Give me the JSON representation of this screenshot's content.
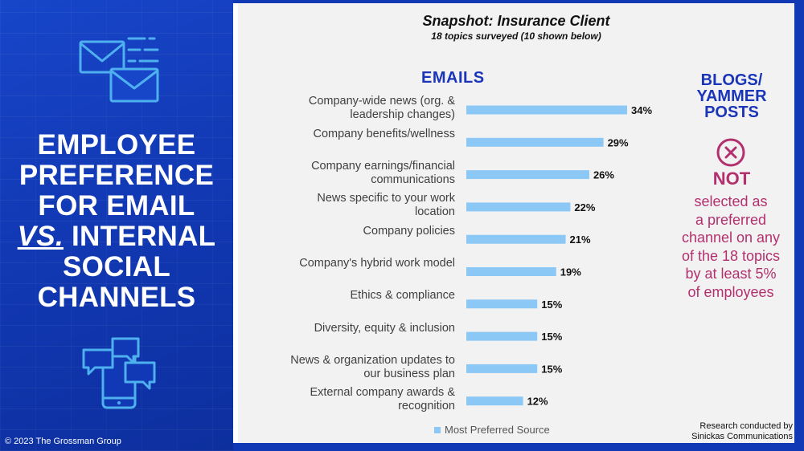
{
  "left_panel": {
    "title_line1": "EMPLOYEE",
    "title_line2": "PREFERENCE",
    "title_line3": "FOR EMAIL",
    "title_vs": "VS.",
    "title_line4_rest": " INTERNAL",
    "title_line5": "SOCIAL",
    "title_line6": "CHANNELS",
    "copyright": "© 2023 The Grossman Group",
    "top_icon": "email-envelopes-icon",
    "bottom_icon": "phone-chat-bubbles-icon"
  },
  "header": {
    "title": "Snapshot: Insurance Client",
    "subtitle": "18 topics surveyed (10 shown below)"
  },
  "emails_heading": "EMAILS",
  "chart_data": {
    "type": "bar",
    "orientation": "horizontal",
    "categories": [
      "Company-wide news (org. & leadership changes)",
      "Company benefits/wellness",
      "Company earnings/financial communications",
      "News specific to your work location",
      "Company policies",
      "Company's hybrid work model",
      "Ethics & compliance",
      "Diversity, equity & inclusion",
      "News & organization updates to our business plan",
      "External company awards & recognition"
    ],
    "category_lines": [
      [
        "Company-wide news (org. &",
        "leadership changes)"
      ],
      [
        "Company benefits/wellness"
      ],
      [
        "Company earnings/financial",
        "communications"
      ],
      [
        "News specific to your work",
        "location"
      ],
      [
        "Company policies"
      ],
      [
        "Company's hybrid work model"
      ],
      [
        "Ethics & compliance"
      ],
      [
        "Diversity, equity & inclusion"
      ],
      [
        "News & organization updates to",
        "our business plan"
      ],
      [
        "External company awards &",
        "recognition"
      ]
    ],
    "series": [
      {
        "name": "Most Preferred Source",
        "values": [
          34,
          29,
          26,
          22,
          21,
          19,
          15,
          15,
          15,
          12
        ]
      }
    ],
    "value_labels": [
      "34%",
      "29%",
      "26%",
      "22%",
      "21%",
      "19%",
      "15%",
      "15%",
      "15%",
      "12%"
    ],
    "legend_position": "bottom",
    "grid": false,
    "bar_color": "#8cc8f5"
  },
  "blogs": {
    "heading_line1": "BLOGS/",
    "heading_line2": "YAMMER",
    "heading_line3": "POSTS",
    "icon": "circle-x-icon",
    "not_label": "NOT",
    "desc_lines": [
      "selected as",
      "a preferred",
      "channel on any",
      "of the 18 topics",
      "by at least 5%",
      "of employees"
    ],
    "accent_color": "#b3306e"
  },
  "research": {
    "line1": "Research conducted by",
    "line2": "Sinickas Communications"
  },
  "colors": {
    "panel_blue": "#1239b5",
    "heading_blue": "#1a35b8",
    "bar": "#8cc8f5"
  }
}
